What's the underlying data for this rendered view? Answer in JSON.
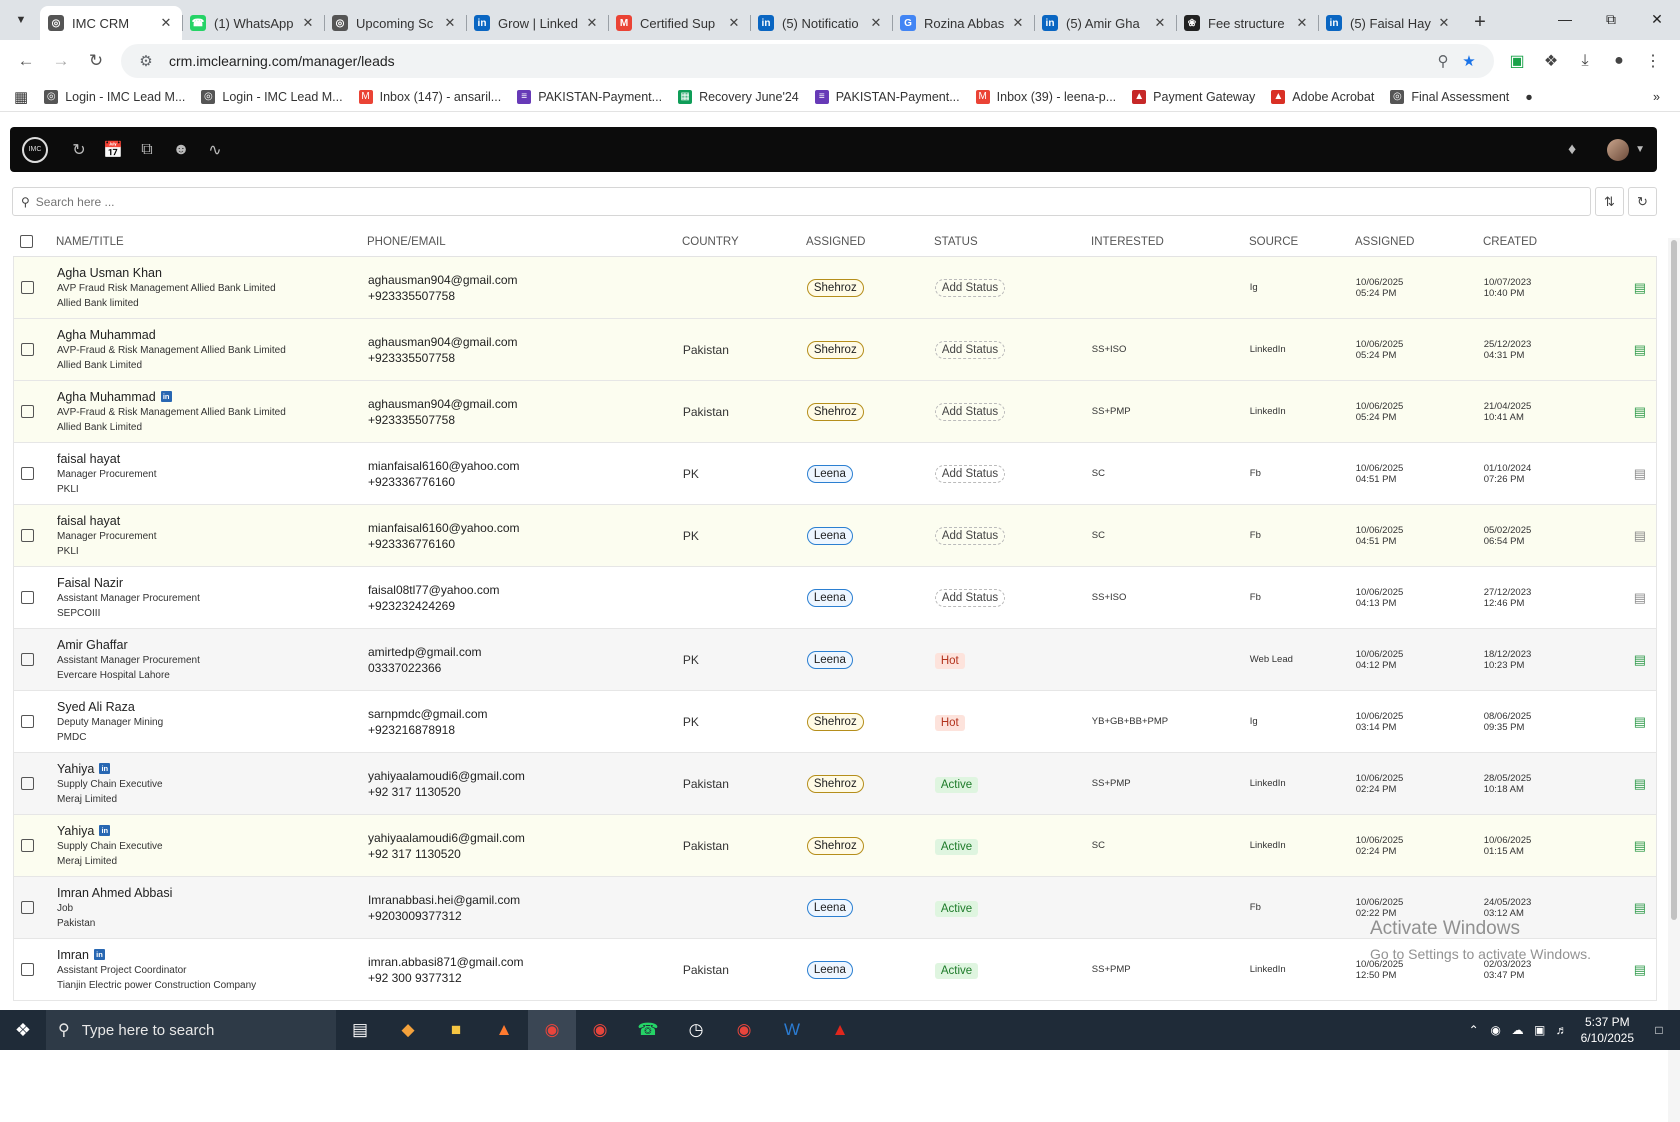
{
  "browser": {
    "tabs": [
      {
        "title": "IMC CRM",
        "active": true,
        "icon": "imc-icon"
      },
      {
        "title": "(1) WhatsApp",
        "active": false,
        "icon": "whatsapp-icon"
      },
      {
        "title": "Upcoming Sc",
        "active": false,
        "icon": "imc-icon"
      },
      {
        "title": "Grow | Linked",
        "active": false,
        "icon": "linkedin-icon"
      },
      {
        "title": "Certified Sup",
        "active": false,
        "icon": "gmail-icon"
      },
      {
        "title": "(5) Notificatio",
        "active": false,
        "icon": "linkedin-icon"
      },
      {
        "title": "Rozina Abbas",
        "active": false,
        "icon": "google-icon"
      },
      {
        "title": "(5) Amir Gha",
        "active": false,
        "icon": "linkedin-icon"
      },
      {
        "title": "Fee structure",
        "active": false,
        "icon": "chatgpt-icon"
      },
      {
        "title": "(5) Faisal Hay",
        "active": false,
        "icon": "linkedin-icon"
      }
    ],
    "url": "crm.imclearning.com/manager/leads",
    "bookmarks": [
      {
        "label": "Login - IMC Lead M...",
        "icon": "imc-icon"
      },
      {
        "label": "Login - IMC Lead M...",
        "icon": "imc-icon"
      },
      {
        "label": "Inbox (147) - ansaril...",
        "icon": "gmail-icon"
      },
      {
        "label": "PAKISTAN-Payment...",
        "icon": "form-icon"
      },
      {
        "label": "Recovery June'24",
        "icon": "sheets-icon"
      },
      {
        "label": "PAKISTAN-Payment...",
        "icon": "form-icon"
      },
      {
        "label": "Inbox (39) - leena-p...",
        "icon": "gmail-icon"
      },
      {
        "label": "Payment Gateway",
        "icon": "gateway-icon"
      },
      {
        "label": "Adobe Acrobat",
        "icon": "acrobat-icon"
      },
      {
        "label": "Final Assessment",
        "icon": "imc-icon"
      }
    ]
  },
  "app": {
    "logo_text": "IMC",
    "search_placeholder": "Search here ...",
    "columns": [
      "NAME/TITLE",
      "PHONE/EMAIL",
      "COUNTRY",
      "ASSIGNED",
      "STATUS",
      "INTERESTED",
      "SOURCE",
      "ASSIGNED",
      "CREATED"
    ],
    "rows": [
      {
        "name": "Agha Usman Khan",
        "linkedin": false,
        "title": "AVP Fraud Risk Management Allied Bank Limited",
        "company": "Allied Bank limited",
        "email": "aghausman904@gmail.com",
        "phone": "+923335507758",
        "country": "",
        "assigned": "Shehroz",
        "status": "Add Status",
        "status_type": "add",
        "interested": "",
        "source": "Ig",
        "assigned_date": "10/06/2025",
        "assigned_time": "05:24 PM",
        "created_date": "10/07/2023",
        "created_time": "10:40 PM",
        "tint": "yellow",
        "doc": "green"
      },
      {
        "name": "Agha Muhammad",
        "linkedin": false,
        "title": "AVP-Fraud & Risk Management Allied Bank Limited",
        "company": "Allied Bank Limited",
        "email": "aghausman904@gmail.com",
        "phone": "+923335507758",
        "country": "Pakistan",
        "assigned": "Shehroz",
        "status": "Add Status",
        "status_type": "add",
        "interested": "SS+ISO",
        "source": "LinkedIn",
        "assigned_date": "10/06/2025",
        "assigned_time": "05:24 PM",
        "created_date": "25/12/2023",
        "created_time": "04:31 PM",
        "tint": "yellow",
        "doc": "green"
      },
      {
        "name": "Agha Muhammad",
        "linkedin": true,
        "title": "AVP-Fraud & Risk Management Allied Bank Limited",
        "company": "Allied Bank Limited",
        "email": "aghausman904@gmail.com",
        "phone": "+923335507758",
        "country": "Pakistan",
        "assigned": "Shehroz",
        "status": "Add Status",
        "status_type": "add",
        "interested": "SS+PMP",
        "source": "LinkedIn",
        "assigned_date": "10/06/2025",
        "assigned_time": "05:24 PM",
        "created_date": "21/04/2025",
        "created_time": "10:41 AM",
        "tint": "yellow",
        "doc": "green"
      },
      {
        "name": "faisal hayat",
        "linkedin": false,
        "title": "Manager Procurement",
        "company": "PKLI",
        "email": "mianfaisal6160@yahoo.com",
        "phone": "+923336776160",
        "country": "PK",
        "assigned": "Leena",
        "status": "Add Status",
        "status_type": "add",
        "interested": "SC",
        "source": "Fb",
        "assigned_date": "10/06/2025",
        "assigned_time": "04:51 PM",
        "created_date": "01/10/2024",
        "created_time": "07:26 PM",
        "tint": "white",
        "doc": "gray"
      },
      {
        "name": "faisal hayat",
        "linkedin": false,
        "title": "Manager Procurement",
        "company": "PKLI",
        "email": "mianfaisal6160@yahoo.com",
        "phone": "+923336776160",
        "country": "PK",
        "assigned": "Leena",
        "status": "Add Status",
        "status_type": "add",
        "interested": "SC",
        "source": "Fb",
        "assigned_date": "10/06/2025",
        "assigned_time": "04:51 PM",
        "created_date": "05/02/2025",
        "created_time": "06:54 PM",
        "tint": "yellow",
        "doc": "gray"
      },
      {
        "name": "Faisal Nazir",
        "linkedin": false,
        "title": "Assistant Manager Procurement",
        "company": "SEPCOIII",
        "email": "faisal08tl77@yahoo.com",
        "phone": "+923232424269",
        "country": "",
        "assigned": "Leena",
        "status": "Add Status",
        "status_type": "add",
        "interested": "SS+ISO",
        "source": "Fb",
        "assigned_date": "10/06/2025",
        "assigned_time": "04:13 PM",
        "created_date": "27/12/2023",
        "created_time": "12:46 PM",
        "tint": "white",
        "doc": "gray"
      },
      {
        "name": "Amir Ghaffar",
        "linkedin": false,
        "title": "Assistant Manager Procurement",
        "company": "Evercare Hospital Lahore",
        "email": "amirtedp@gmail.com",
        "phone": "03337022366",
        "country": "PK",
        "assigned": "Leena",
        "status": "Hot",
        "status_type": "hot",
        "interested": "",
        "source": "Web Lead",
        "assigned_date": "10/06/2025",
        "assigned_time": "04:12 PM",
        "created_date": "18/12/2023",
        "created_time": "10:23 PM",
        "tint": "gray",
        "doc": "green"
      },
      {
        "name": "Syed Ali Raza",
        "linkedin": false,
        "title": "Deputy Manager Mining",
        "company": "PMDC",
        "email": "sarnpmdc@gmail.com",
        "phone": "+923216878918",
        "country": "PK",
        "assigned": "Shehroz",
        "status": "Hot",
        "status_type": "hot",
        "interested": "YB+GB+BB+PMP",
        "source": "Ig",
        "assigned_date": "10/06/2025",
        "assigned_time": "03:14 PM",
        "created_date": "08/06/2025",
        "created_time": "09:35 PM",
        "tint": "white",
        "doc": "green"
      },
      {
        "name": "Yahiya",
        "linkedin": true,
        "title": "Supply Chain Executive",
        "company": "Meraj Limited",
        "email": "yahiyaalamoudi6@gmail.com",
        "phone": "+92 317 1130520",
        "country": "Pakistan",
        "assigned": "Shehroz",
        "status": "Active",
        "status_type": "active",
        "interested": "SS+PMP",
        "source": "LinkedIn",
        "assigned_date": "10/06/2025",
        "assigned_time": "02:24 PM",
        "created_date": "28/05/2025",
        "created_time": "10:18 AM",
        "tint": "gray",
        "doc": "green"
      },
      {
        "name": "Yahiya",
        "linkedin": true,
        "title": "Supply Chain Executive",
        "company": "Meraj Limited",
        "email": "yahiyaalamoudi6@gmail.com",
        "phone": "+92 317 1130520",
        "country": "Pakistan",
        "assigned": "Shehroz",
        "status": "Active",
        "status_type": "active",
        "interested": "SC",
        "source": "LinkedIn",
        "assigned_date": "10/06/2025",
        "assigned_time": "02:24 PM",
        "created_date": "10/06/2025",
        "created_time": "01:15 AM",
        "tint": "yellow",
        "doc": "green"
      },
      {
        "name": "Imran Ahmed Abbasi",
        "linkedin": false,
        "title": "Job",
        "company": "Pakistan",
        "email": "Imranabbasi.hei@gamil.com",
        "phone": "+9203009377312",
        "country": "",
        "assigned": "Leena",
        "status": "Active",
        "status_type": "active",
        "interested": "",
        "source": "Fb",
        "assigned_date": "10/06/2025",
        "assigned_time": "02:22 PM",
        "created_date": "24/05/2023",
        "created_time": "03:12 AM",
        "tint": "gray",
        "doc": "green"
      },
      {
        "name": "Imran",
        "linkedin": true,
        "title": "Assistant Project Coordinator",
        "company": "Tianjin Electric power Construction Company",
        "email": "imran.abbasi871@gmail.com",
        "phone": "+92 300 9377312",
        "country": "Pakistan",
        "assigned": "Leena",
        "status": "Active",
        "status_type": "active",
        "interested": "SS+PMP",
        "source": "LinkedIn",
        "assigned_date": "10/06/2025",
        "assigned_time": "12:50 PM",
        "created_date": "02/03/2023",
        "created_time": "03:47 PM",
        "tint": "white",
        "doc": "green"
      }
    ]
  },
  "watermark": {
    "line1": "Activate Windows",
    "line2": "Go to Settings to activate Windows."
  },
  "taskbar": {
    "search_placeholder": "Type here to search",
    "time": "5:37 PM",
    "date": "6/10/2025"
  },
  "colors": {
    "shehroz_badge": "#b58e1b",
    "leena_badge": "#2b7fd1",
    "hot": "#b2321c",
    "active": "#1e7b2a",
    "linkedin": "#2867b2"
  }
}
